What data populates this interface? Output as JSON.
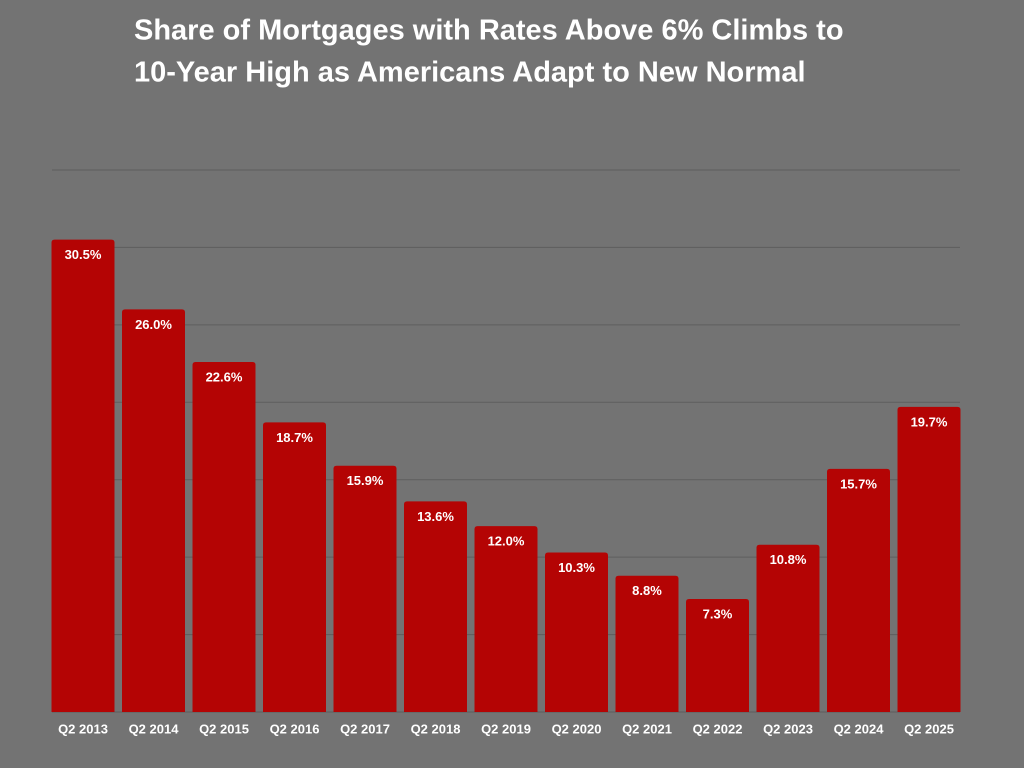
{
  "chart_data": {
    "type": "bar",
    "title": [
      "Share of Mortgages with Rates Above 6% Climbs to",
      "10-Year High as Americans Adapt to New Normal"
    ],
    "categories": [
      "Q2 2013",
      "Q2 2014",
      "Q2 2015",
      "Q2 2016",
      "Q2 2017",
      "Q2 2018",
      "Q2 2019",
      "Q2 2020",
      "Q2 2021",
      "Q2 2022",
      "Q2 2023",
      "Q2 2024",
      "Q2 2025"
    ],
    "values": [
      30.5,
      26.0,
      22.6,
      18.7,
      15.9,
      13.6,
      12.0,
      10.3,
      8.8,
      7.3,
      10.8,
      15.7,
      19.7
    ],
    "value_labels": [
      "30.5%",
      "26.0%",
      "22.6%",
      "18.7%",
      "15.9%",
      "13.6%",
      "12.0%",
      "10.3%",
      "8.8%",
      "7.3%",
      "10.8%",
      "15.7%",
      "19.7%"
    ],
    "color": "#b40404",
    "ylim": [
      0,
      35
    ],
    "yticks": [
      0,
      5,
      10,
      15,
      20,
      25,
      30,
      35
    ],
    "grid": true
  }
}
